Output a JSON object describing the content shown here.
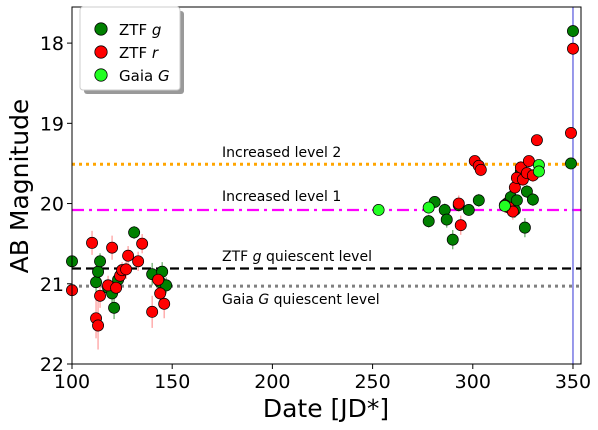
{
  "chart_data": {
    "type": "scatter",
    "xlabel": "Date [JD*]",
    "ylabel": "AB Magnitude",
    "xlim": [
      100,
      354
    ],
    "ylim": [
      22,
      17.55
    ],
    "y_inverted": true,
    "x_ticks": [
      100,
      150,
      200,
      250,
      300,
      350
    ],
    "y_ticks": [
      18,
      19,
      20,
      21,
      22
    ],
    "legend": {
      "placement": "top-left",
      "entries": [
        {
          "series": "ztf_g",
          "prefix": "ZTF ",
          "italic": "g"
        },
        {
          "series": "ztf_r",
          "prefix": "ZTF ",
          "italic": "r"
        },
        {
          "series": "gaia_G",
          "prefix": "Gaia ",
          "italic": "G"
        }
      ]
    },
    "reference_lines": [
      {
        "id": "increased2",
        "y": 19.51,
        "color": "#ffa500",
        "style": "dotted",
        "label_parts": [
          "Increased level 2"
        ]
      },
      {
        "id": "increased1",
        "y": 20.08,
        "color": "#ff00ff",
        "style": "dashdot",
        "label_parts": [
          "Increased level 1"
        ]
      },
      {
        "id": "ztf_quiescent",
        "y": 20.81,
        "color": "#000000",
        "style": "dashed",
        "label_parts": [
          "ZTF ",
          "g",
          " quiescent level"
        ]
      },
      {
        "id": "gaia_quiescent",
        "y": 21.03,
        "color": "#808080",
        "style": "dotted",
        "label_parts": [
          "Gaia ",
          "G",
          " quiescent level"
        ]
      }
    ],
    "vertical_line": {
      "x": 350,
      "color": "#5555dd"
    },
    "series": [
      {
        "id": "ztf_g",
        "name": "ZTF g",
        "color": "#008000",
        "error_color": "#66aa66",
        "points": [
          [
            100,
            20.72,
            0.06
          ],
          [
            112,
            20.98,
            0.12
          ],
          [
            113,
            20.85,
            0.1
          ],
          [
            114,
            20.72,
            0.1
          ],
          [
            118,
            21.05,
            0.1
          ],
          [
            120,
            21.12,
            0.15
          ],
          [
            121,
            21.3,
            0.14
          ],
          [
            123,
            20.95,
            0.1
          ],
          [
            131,
            20.36,
            0.08
          ],
          [
            140,
            20.88,
            0.14
          ],
          [
            144,
            20.98,
            0.12
          ],
          [
            145,
            20.85,
            0.12
          ],
          [
            147,
            21.02,
            0.1
          ],
          [
            278,
            20.22,
            0.08
          ],
          [
            281,
            19.98,
            0.07
          ],
          [
            286,
            20.08,
            0.08
          ],
          [
            287,
            20.2,
            0.1
          ],
          [
            290,
            20.45,
            0.12
          ],
          [
            293,
            20.02,
            0.08
          ],
          [
            298,
            20.08,
            0.07
          ],
          [
            303,
            19.96,
            0.08
          ],
          [
            317,
            20.0,
            0.07
          ],
          [
            319,
            19.92,
            0.08
          ],
          [
            321,
            20.08,
            0.1
          ],
          [
            322,
            19.96,
            0.07
          ],
          [
            324,
            19.6,
            0.08
          ],
          [
            326,
            20.3,
            0.12
          ],
          [
            327,
            19.85,
            0.08
          ],
          [
            330,
            19.95,
            0.08
          ],
          [
            349,
            19.5,
            0.07
          ],
          [
            350,
            17.85,
            0.05
          ]
        ]
      },
      {
        "id": "ztf_r",
        "name": "ZTF r",
        "color": "#ff0000",
        "error_color": "#ff9999",
        "points": [
          [
            100,
            21.08,
            0.12
          ],
          [
            110,
            20.49,
            0.15
          ],
          [
            112,
            21.43,
            0.25
          ],
          [
            113,
            21.52,
            0.3
          ],
          [
            114,
            21.15,
            0.15
          ],
          [
            118,
            21.02,
            0.12
          ],
          [
            120,
            20.55,
            0.15
          ],
          [
            122,
            21.05,
            0.12
          ],
          [
            124,
            20.9,
            0.12
          ],
          [
            125,
            20.83,
            0.1
          ],
          [
            127,
            20.82,
            0.12
          ],
          [
            128,
            20.65,
            0.12
          ],
          [
            133,
            20.72,
            0.12
          ],
          [
            135,
            20.5,
            0.12
          ],
          [
            140,
            21.35,
            0.2
          ],
          [
            143,
            20.95,
            0.15
          ],
          [
            144,
            21.12,
            0.18
          ],
          [
            146,
            21.25,
            0.18
          ],
          [
            293,
            20.0,
            0.1
          ],
          [
            294,
            20.27,
            0.12
          ],
          [
            301,
            19.47,
            0.07
          ],
          [
            303,
            19.53,
            0.07
          ],
          [
            304,
            19.58,
            0.08
          ],
          [
            316,
            20.02,
            0.1
          ],
          [
            318,
            20.05,
            0.1
          ],
          [
            320,
            20.1,
            0.1
          ],
          [
            321,
            19.8,
            0.08
          ],
          [
            322,
            19.68,
            0.08
          ],
          [
            324,
            19.55,
            0.08
          ],
          [
            325,
            19.7,
            0.08
          ],
          [
            327,
            19.62,
            0.08
          ],
          [
            328,
            19.47,
            0.07
          ],
          [
            330,
            19.65,
            0.08
          ],
          [
            332,
            19.21,
            0.07
          ],
          [
            349,
            19.12,
            0.06
          ],
          [
            350,
            18.07,
            0.05
          ]
        ]
      },
      {
        "id": "gaia_G",
        "name": "Gaia G",
        "color": "#22ff22",
        "error_color": "#22ff22",
        "points": [
          [
            253,
            20.08,
            0.0
          ],
          [
            278,
            20.05,
            0.0
          ],
          [
            316,
            20.03,
            0.0
          ],
          [
            333,
            19.52,
            0.0
          ],
          [
            333,
            19.6,
            0.0
          ]
        ]
      }
    ]
  }
}
